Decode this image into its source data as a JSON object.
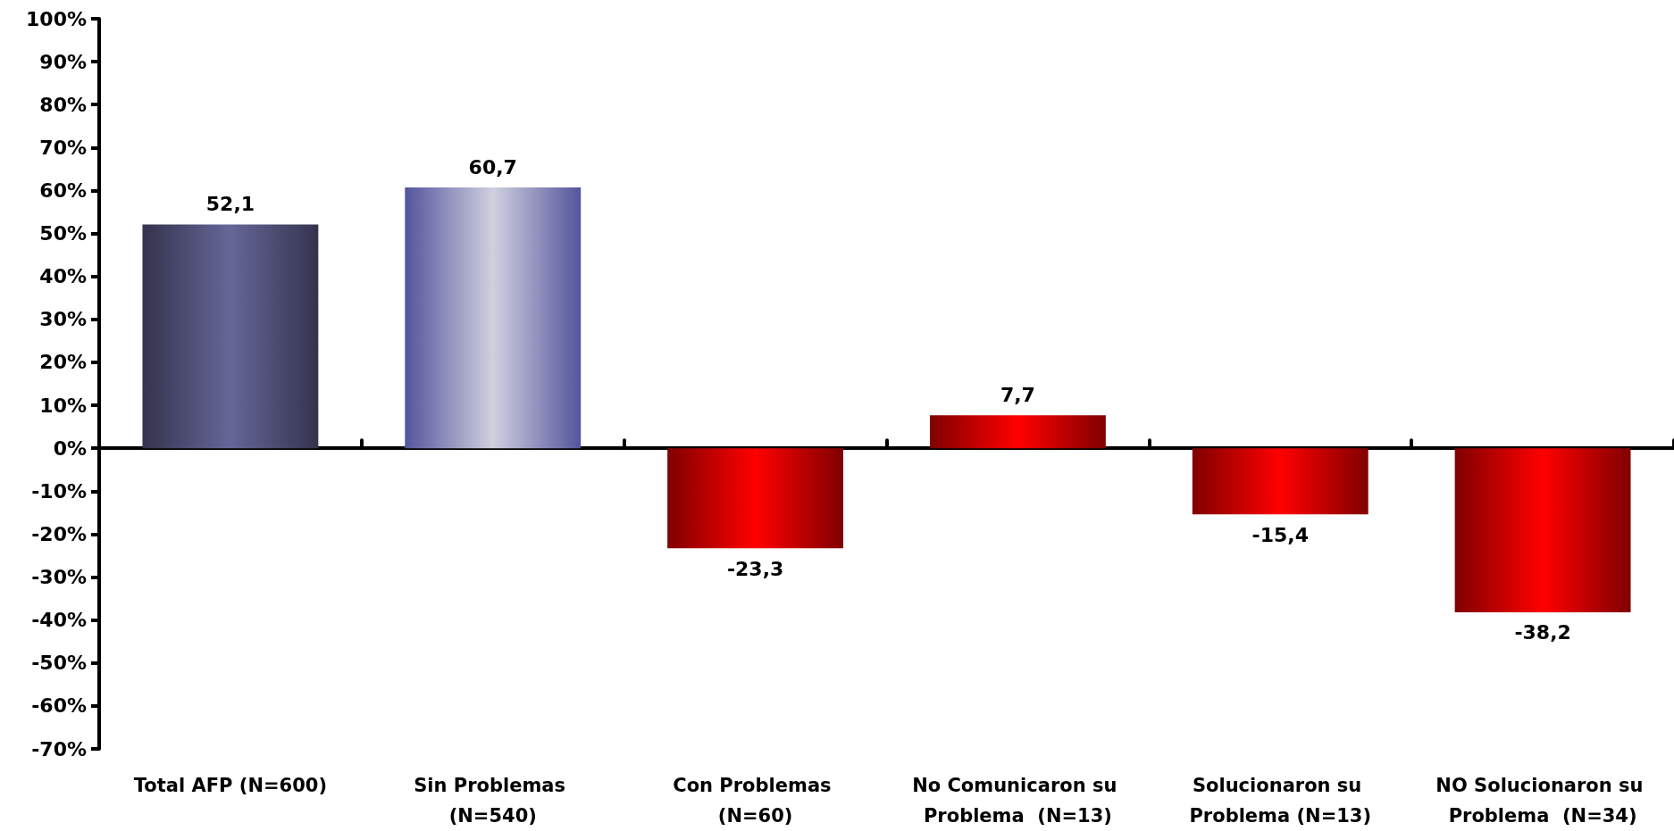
{
  "chart_data": {
    "type": "bar",
    "categories": [
      "Total AFP (N=600)",
      "Sin Problemas (N=540)",
      "Con Problemas (N=60)",
      "No Comunicaron su Problema  (N=13)",
      "Solucionaron su Problema (N=13)",
      "NO Solucionaron su Problema  (N=34)"
    ],
    "values": [
      52.1,
      60.7,
      -23.3,
      7.7,
      -15.4,
      -38.2
    ],
    "colors": [
      "#666699",
      "#d0d0e0",
      "#ff0000",
      "#ff0000",
      "#ff0000",
      "#ff0000"
    ],
    "value_labels": [
      "52,1",
      "60,7",
      "-23,3",
      "7,7",
      "-15,4",
      "-38,2"
    ],
    "ylim": [
      -70,
      100
    ],
    "yticks": [
      {
        "value": -70,
        "label": "-70%"
      },
      {
        "value": -60,
        "label": "-60%"
      },
      {
        "value": -50,
        "label": "-50%"
      },
      {
        "value": -40,
        "label": "-40%"
      },
      {
        "value": -30,
        "label": "-30%"
      },
      {
        "value": -20,
        "label": "-20%"
      },
      {
        "value": -10,
        "label": "-10%"
      },
      {
        "value": 0,
        "label": "0%"
      },
      {
        "value": 10,
        "label": "10%"
      },
      {
        "value": 20,
        "label": "20%"
      },
      {
        "value": 30,
        "label": "30%"
      },
      {
        "value": 40,
        "label": "40%"
      },
      {
        "value": 50,
        "label": "50%"
      },
      {
        "value": 60,
        "label": "60%"
      },
      {
        "value": 70,
        "label": "70%"
      },
      {
        "value": 80,
        "label": "80%"
      },
      {
        "value": 90,
        "label": "90%"
      },
      {
        "value": 100,
        "label": "100%"
      }
    ]
  }
}
